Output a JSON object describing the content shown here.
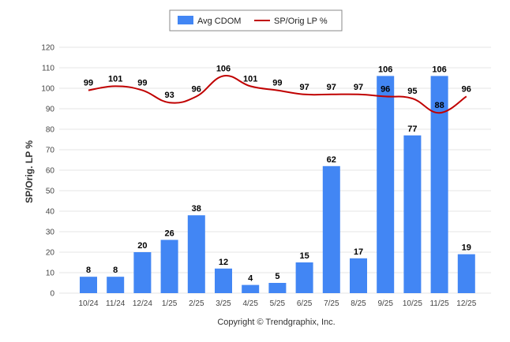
{
  "chart_data": {
    "type": "bar",
    "title": "",
    "xlabel": "",
    "ylabel": "SP/Orig. LP %",
    "ylim": [
      0,
      120
    ],
    "yticks": [
      0,
      10,
      20,
      30,
      40,
      50,
      60,
      70,
      80,
      90,
      100,
      110,
      120
    ],
    "categories": [
      "10/24",
      "11/24",
      "12/24",
      "1/25",
      "2/25",
      "3/25",
      "4/25",
      "5/25",
      "6/25",
      "7/25",
      "8/25",
      "9/25",
      "10/25",
      "11/25",
      "12/25"
    ],
    "series": [
      {
        "name": "Avg CDOM",
        "type": "bar",
        "color": "#4286f4",
        "values": [
          8,
          8,
          20,
          26,
          38,
          12,
          4,
          5,
          15,
          62,
          17,
          106,
          77,
          106,
          19
        ]
      },
      {
        "name": "SP/Orig LP %",
        "type": "line",
        "color": "#c00000",
        "values": [
          99,
          101,
          99,
          93,
          96,
          106,
          101,
          99,
          97,
          97,
          97,
          96,
          95,
          88,
          96
        ]
      }
    ],
    "legend": "top-center",
    "grid": true,
    "footer": "Copyright © Trendgraphix, Inc."
  }
}
